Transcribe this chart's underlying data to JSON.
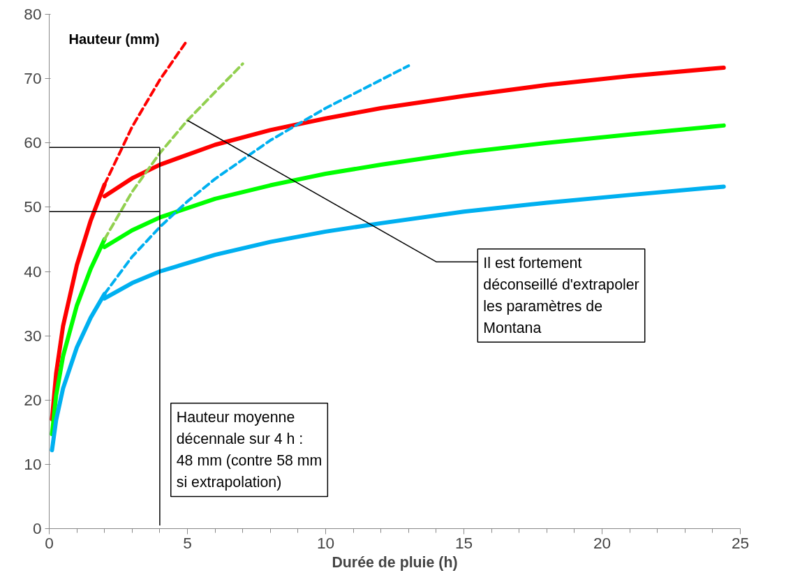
{
  "chart_data": {
    "type": "line",
    "xlabel": "Durée de pluie (h)",
    "ylabel": "Hauteur (mm)",
    "xlim": [
      0,
      25
    ],
    "ylim": [
      0,
      80
    ],
    "xticks": [
      0,
      5,
      10,
      15,
      20,
      25
    ],
    "yticks": [
      0,
      10,
      20,
      30,
      40,
      50,
      60,
      70,
      80
    ],
    "grid": false,
    "marker": "none",
    "series": [
      {
        "color": "#ff0000",
        "line_style": "solid",
        "x": [
          0.1,
          0.25,
          0.5,
          1,
          1.5,
          2
        ],
        "values": [
          17.0,
          24.1,
          31.5,
          41.0,
          47.9,
          53.5
        ]
      },
      {
        "color": "#ff0000",
        "line_style": "dashed",
        "x": [
          2,
          3,
          4,
          5
        ],
        "values": [
          53.5,
          62.5,
          69.8,
          76.0
        ]
      },
      {
        "color": "#ff0000",
        "line_style": "solid",
        "x": [
          2,
          3,
          4,
          6,
          8,
          10,
          12,
          15,
          18,
          21,
          24.4
        ],
        "values": [
          51.7,
          54.5,
          56.6,
          59.7,
          62.0,
          63.8,
          65.4,
          67.3,
          69.0,
          70.4,
          71.7
        ]
      },
      {
        "color": "#00ff00",
        "line_style": "solid",
        "x": [
          0.1,
          0.25,
          0.5,
          1,
          1.5,
          2
        ],
        "values": [
          14.7,
          20.7,
          26.8,
          34.7,
          40.4,
          45.0
        ]
      },
      {
        "color": "#92d050",
        "line_style": "dashed",
        "x": [
          2,
          3,
          4,
          5,
          6,
          7
        ],
        "values": [
          45.0,
          52.4,
          58.4,
          63.5,
          67.9,
          72.3
        ]
      },
      {
        "color": "#00ff00",
        "line_style": "solid",
        "x": [
          2,
          3,
          4,
          6,
          8,
          10,
          12,
          15,
          18,
          21,
          24.4
        ],
        "values": [
          43.8,
          46.4,
          48.4,
          51.3,
          53.4,
          55.2,
          56.6,
          58.5,
          60.0,
          61.3,
          62.7
        ]
      },
      {
        "color": "#00b0f0",
        "line_style": "solid",
        "x": [
          0.1,
          0.25,
          0.5,
          1,
          1.5,
          2
        ],
        "values": [
          12.2,
          16.9,
          21.8,
          28.2,
          32.8,
          36.5
        ]
      },
      {
        "color": "#00b0f0",
        "line_style": "dashed",
        "x": [
          2,
          3,
          4,
          5,
          6,
          8,
          10,
          13
        ],
        "values": [
          36.5,
          42.3,
          46.9,
          50.9,
          54.4,
          60.4,
          65.4,
          72.0
        ]
      },
      {
        "color": "#00b0f0",
        "line_style": "solid",
        "x": [
          2,
          3,
          4,
          6,
          8,
          10,
          12,
          15,
          18,
          21,
          24.4
        ],
        "values": [
          35.8,
          38.2,
          40.0,
          42.6,
          44.6,
          46.2,
          47.5,
          49.3,
          50.7,
          51.9,
          53.2
        ]
      }
    ],
    "ref_lines": [
      {
        "axis": "x",
        "value": 4
      },
      {
        "axis": "y",
        "value": 59.3
      },
      {
        "axis": "y",
        "value": 49.3
      }
    ],
    "annotations": [
      {
        "text": "Il est fortement déconseillé d'extrapoler les paramètres de Montana",
        "x": 5,
        "y": 63.5
      },
      "Hauteur moyenne décennale sur 4 h : 48 mm (contre 58 mm si extrapolation)"
    ]
  }
}
